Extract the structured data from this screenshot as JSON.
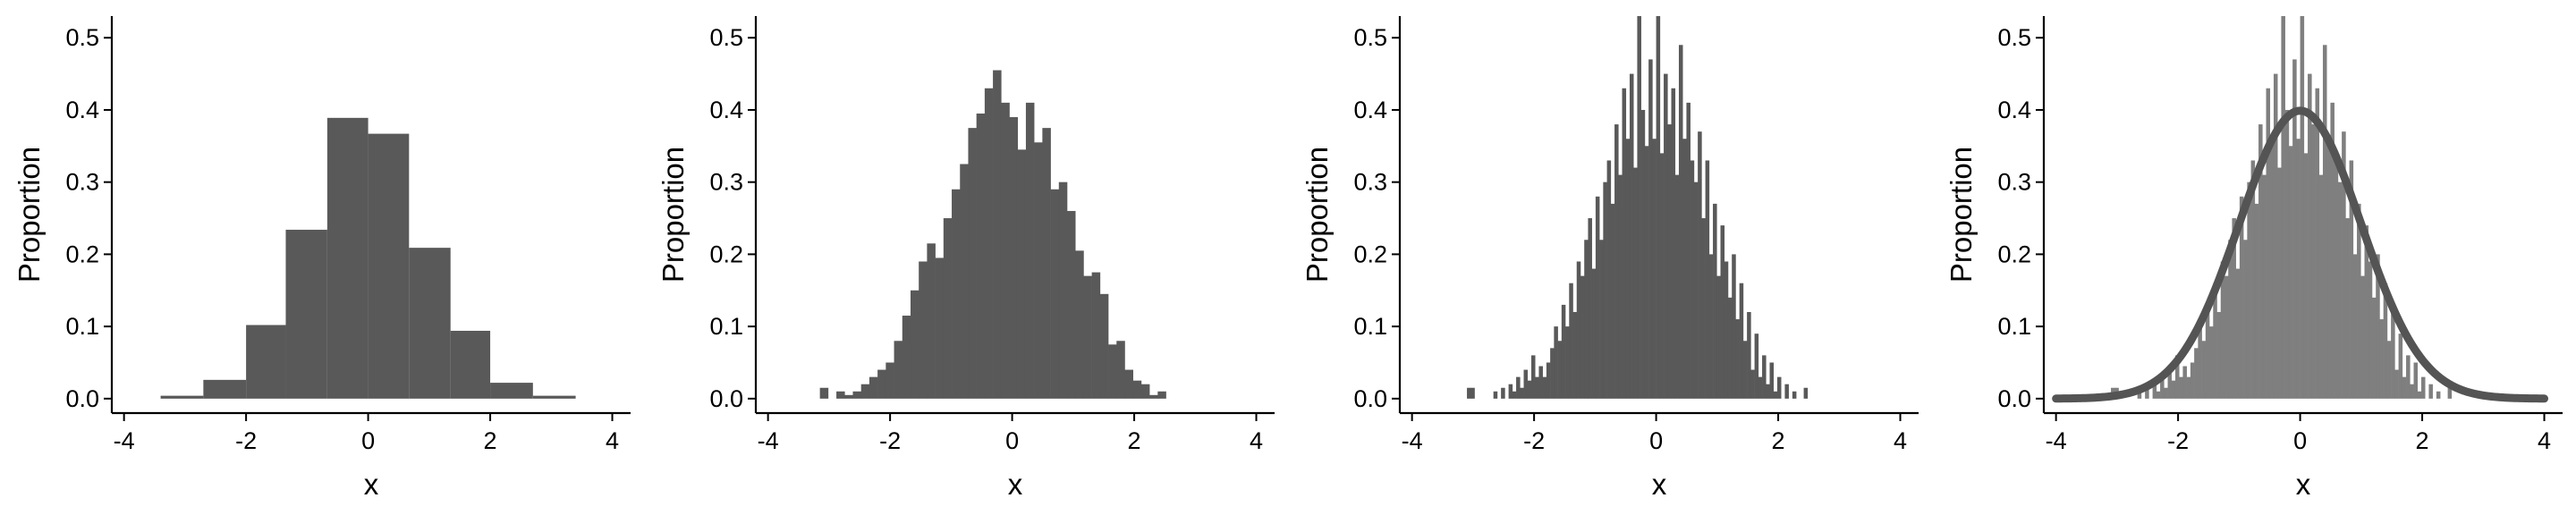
{
  "chart_data": [
    {
      "type": "histogram",
      "xlabel": "x",
      "ylabel": "Proportion",
      "xlim": [
        -4.2,
        4.3
      ],
      "ylim": [
        -0.02,
        0.53
      ],
      "xticks": [
        -4,
        -2,
        0,
        2,
        4
      ],
      "xtick_labels": [
        "-4",
        "-2",
        "0",
        "2",
        "4"
      ],
      "yticks": [
        0.0,
        0.1,
        0.2,
        0.3,
        0.4,
        0.5
      ],
      "ytick_labels": [
        "0.0",
        "0.1",
        "0.2",
        "0.3",
        "0.4",
        "0.5"
      ],
      "bar_color": "#595959",
      "bins": [
        {
          "x0": -3.4,
          "x1": -2.7,
          "value": 0.004
        },
        {
          "x0": -2.7,
          "x1": -2.0,
          "value": 0.026
        },
        {
          "x0": -2.0,
          "x1": -1.35,
          "value": 0.102
        },
        {
          "x0": -1.35,
          "x1": -0.67,
          "value": 0.234
        },
        {
          "x0": -0.67,
          "x1": 0.0,
          "value": 0.389
        },
        {
          "x0": 0.0,
          "x1": 0.67,
          "value": 0.367
        },
        {
          "x0": 0.67,
          "x1": 1.35,
          "value": 0.209
        },
        {
          "x0": 1.35,
          "x1": 2.0,
          "value": 0.094
        },
        {
          "x0": 2.0,
          "x1": 2.7,
          "value": 0.022
        },
        {
          "x0": 2.7,
          "x1": 3.4,
          "value": 0.004
        }
      ]
    },
    {
      "type": "histogram",
      "xlabel": "x",
      "ylabel": "Proportion",
      "xlim": [
        -4.2,
        4.3
      ],
      "ylim": [
        -0.02,
        0.53
      ],
      "xticks": [
        -4,
        -2,
        0,
        2,
        4
      ],
      "xtick_labels": [
        "-4",
        "-2",
        "0",
        "2",
        "4"
      ],
      "yticks": [
        0.0,
        0.1,
        0.2,
        0.3,
        0.4,
        0.5
      ],
      "ytick_labels": [
        "0.0",
        "0.1",
        "0.2",
        "0.3",
        "0.4",
        "0.5"
      ],
      "bar_color": "#595959",
      "bin_start": -3.15,
      "bin_width": 0.135,
      "values": [
        0.015,
        0.0,
        0.01,
        0.005,
        0.01,
        0.02,
        0.03,
        0.04,
        0.05,
        0.08,
        0.115,
        0.15,
        0.19,
        0.215,
        0.195,
        0.25,
        0.29,
        0.325,
        0.375,
        0.395,
        0.43,
        0.455,
        0.41,
        0.39,
        0.345,
        0.41,
        0.355,
        0.375,
        0.29,
        0.3,
        0.26,
        0.205,
        0.17,
        0.175,
        0.145,
        0.075,
        0.08,
        0.04,
        0.025,
        0.02,
        0.005,
        0.01
      ]
    },
    {
      "type": "histogram",
      "xlabel": "x",
      "ylabel": "Proportion",
      "xlim": [
        -4.2,
        4.3
      ],
      "ylim": [
        -0.02,
        0.53
      ],
      "xticks": [
        -4,
        -2,
        0,
        2,
        4
      ],
      "xtick_labels": [
        "-4",
        "-2",
        "0",
        "2",
        "4"
      ],
      "yticks": [
        0.0,
        0.1,
        0.2,
        0.3,
        0.4,
        0.5
      ],
      "ytick_labels": [
        "0.0",
        "0.1",
        "0.2",
        "0.3",
        "0.4",
        "0.5"
      ],
      "bar_color": "#595959",
      "bin_start": -3.1,
      "bin_width": 0.062,
      "values": [
        0.015,
        0.015,
        0.0,
        0.0,
        0.0,
        0.0,
        0.0,
        0.01,
        0.0,
        0.015,
        0.0,
        0.02,
        0.01,
        0.03,
        0.015,
        0.04,
        0.025,
        0.06,
        0.03,
        0.045,
        0.03,
        0.05,
        0.07,
        0.1,
        0.08,
        0.13,
        0.1,
        0.16,
        0.12,
        0.19,
        0.17,
        0.22,
        0.25,
        0.18,
        0.28,
        0.22,
        0.3,
        0.33,
        0.27,
        0.38,
        0.31,
        0.43,
        0.36,
        0.45,
        0.32,
        0.53,
        0.4,
        0.35,
        0.47,
        0.36,
        0.53,
        0.34,
        0.45,
        0.38,
        0.43,
        0.31,
        0.49,
        0.36,
        0.41,
        0.33,
        0.3,
        0.37,
        0.25,
        0.33,
        0.2,
        0.27,
        0.17,
        0.24,
        0.19,
        0.14,
        0.2,
        0.11,
        0.16,
        0.08,
        0.12,
        0.04,
        0.09,
        0.03,
        0.06,
        0.02,
        0.05,
        0.01,
        0.03,
        0.0,
        0.02,
        0.0,
        0.01,
        0.0,
        0.0,
        0.015
      ]
    },
    {
      "type": "histogram",
      "xlabel": "x",
      "ylabel": "Proportion",
      "xlim": [
        -4.2,
        4.3
      ],
      "ylim": [
        -0.02,
        0.53
      ],
      "xticks": [
        -4,
        -2,
        0,
        2,
        4
      ],
      "xtick_labels": [
        "-4",
        "-2",
        "0",
        "2",
        "4"
      ],
      "yticks": [
        0.0,
        0.1,
        0.2,
        0.3,
        0.4,
        0.5
      ],
      "ytick_labels": [
        "0.0",
        "0.1",
        "0.2",
        "0.3",
        "0.4",
        "0.5"
      ],
      "bar_color": "#7f7f7f",
      "curve_color": "#545454",
      "bin_start": -3.1,
      "bin_width": 0.062,
      "values": [
        0.015,
        0.015,
        0.0,
        0.0,
        0.0,
        0.0,
        0.0,
        0.01,
        0.0,
        0.015,
        0.0,
        0.02,
        0.01,
        0.03,
        0.015,
        0.04,
        0.025,
        0.06,
        0.03,
        0.045,
        0.03,
        0.05,
        0.07,
        0.1,
        0.08,
        0.13,
        0.1,
        0.16,
        0.12,
        0.19,
        0.17,
        0.22,
        0.25,
        0.18,
        0.28,
        0.22,
        0.3,
        0.33,
        0.27,
        0.38,
        0.31,
        0.43,
        0.36,
        0.45,
        0.32,
        0.53,
        0.4,
        0.35,
        0.47,
        0.36,
        0.53,
        0.34,
        0.45,
        0.38,
        0.43,
        0.31,
        0.49,
        0.36,
        0.41,
        0.33,
        0.3,
        0.37,
        0.25,
        0.33,
        0.2,
        0.27,
        0.17,
        0.24,
        0.19,
        0.14,
        0.2,
        0.11,
        0.16,
        0.08,
        0.12,
        0.04,
        0.09,
        0.03,
        0.06,
        0.02,
        0.05,
        0.01,
        0.03,
        0.0,
        0.02,
        0.0,
        0.01,
        0.0,
        0.0,
        0.015
      ],
      "curve": {
        "type": "normal-density",
        "mean": 0,
        "sd": 1,
        "x_range": [
          -4,
          4
        ]
      }
    }
  ]
}
